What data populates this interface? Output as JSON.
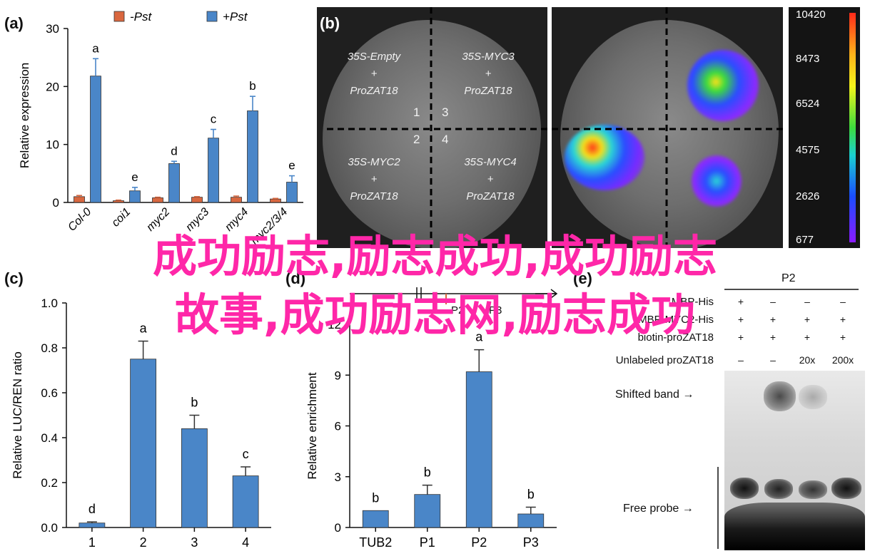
{
  "panel_a": {
    "label": "(a)",
    "legend": [
      "-Pst",
      "+Pst"
    ],
    "ylabel": "Relative expression",
    "yticks": [
      "0",
      "10",
      "20",
      "30"
    ],
    "xticks": [
      "Col-0",
      "coi1",
      "myc2",
      "myc3",
      "myc4",
      "myc2/3/4"
    ],
    "letters": [
      "a",
      "e",
      "d",
      "c",
      "b",
      "e"
    ]
  },
  "panel_b": {
    "label": "(b)",
    "quadrants": [
      {
        "l1": "35S-Empty",
        "l2": "+",
        "l3": "ProZAT18"
      },
      {
        "l1": "35S-MYC3",
        "l2": "+",
        "l3": "ProZAT18"
      },
      {
        "l1": "35S-MYC2",
        "l2": "+",
        "l3": "ProZAT18"
      },
      {
        "l1": "35S-MYC4",
        "l2": "+",
        "l3": "ProZAT18"
      }
    ],
    "numbers": [
      "1",
      "3",
      "2",
      "4"
    ],
    "scale": [
      "10420",
      "8473",
      "6524",
      "4575",
      "2626",
      "677"
    ]
  },
  "panel_c": {
    "label": "(c)",
    "ylabel": "Relative LUC/REN ratio",
    "yticks": [
      "0.0",
      "0.2",
      "0.4",
      "0.6",
      "0.8",
      "1.0"
    ],
    "xticks": [
      "1",
      "2",
      "3",
      "4"
    ],
    "letters": [
      "d",
      "a",
      "b",
      "c"
    ]
  },
  "panel_d": {
    "label": "(d)",
    "ylabel": "Relative enrichment",
    "yticks": [
      "0",
      "3",
      "6",
      "9",
      "12"
    ],
    "xticks": [
      "TUB2",
      "P1",
      "P2",
      "P3"
    ],
    "letters": [
      "b",
      "b",
      "a",
      "b"
    ],
    "diagram_labels": [
      "P2",
      "P3"
    ]
  },
  "panel_e": {
    "label": "(e)",
    "probe_header": "P2",
    "row_labels": [
      "MBP-His",
      "MBP-MYC2-His",
      "biotin-proZAT18",
      "Unlabeled proZAT18"
    ],
    "rows": [
      [
        "+",
        "–",
        "–",
        "–"
      ],
      [
        "+",
        "+",
        "+",
        "+"
      ],
      [
        "+",
        "+",
        "+",
        "+"
      ],
      [
        "–",
        "–",
        "20x",
        "200x"
      ]
    ],
    "shifted": "Shifted band",
    "free": "Free probe"
  },
  "overlay": {
    "line1": "成功励志,励志成功,成功励志",
    "line2": "故事,成功励志网,励志成功"
  },
  "chart_data": [
    {
      "type": "bar",
      "title": "",
      "xlabel": "",
      "ylabel": "Relative expression",
      "categories": [
        "Col-0",
        "coi1",
        "myc2",
        "myc3",
        "myc4",
        "myc2/3/4"
      ],
      "series": [
        {
          "name": "-Pst",
          "values": [
            1.0,
            0.3,
            0.8,
            0.9,
            0.9,
            0.6
          ],
          "errors": [
            0.2,
            0.1,
            0.1,
            0.1,
            0.2,
            0.1
          ],
          "color": "#d9673f"
        },
        {
          "name": "+Pst",
          "values": [
            21.8,
            2.0,
            6.7,
            11.1,
            15.8,
            3.5
          ],
          "errors": [
            3.0,
            0.6,
            0.4,
            1.5,
            2.5,
            1.1
          ],
          "color": "#4a86c8"
        }
      ],
      "letters": [
        "a",
        "e",
        "d",
        "c",
        "b",
        "e"
      ],
      "ylim": [
        0,
        30
      ]
    },
    {
      "type": "bar",
      "title": "",
      "xlabel": "",
      "ylabel": "Relative LUC/REN ratio",
      "categories": [
        "1",
        "2",
        "3",
        "4"
      ],
      "values": [
        0.02,
        0.75,
        0.44,
        0.23
      ],
      "errors": [
        0.005,
        0.08,
        0.06,
        0.04
      ],
      "letters": [
        "d",
        "a",
        "b",
        "c"
      ],
      "ylim": [
        0,
        1.0
      ],
      "color": "#4a86c8"
    },
    {
      "type": "bar",
      "title": "",
      "xlabel": "",
      "ylabel": "Relative enrichment",
      "categories": [
        "TUB2",
        "P1",
        "P2",
        "P3"
      ],
      "values": [
        1.0,
        1.95,
        9.2,
        0.8
      ],
      "errors": [
        0.0,
        0.55,
        1.3,
        0.4
      ],
      "letters": [
        "b",
        "b",
        "a",
        "b"
      ],
      "ylim": [
        0,
        12
      ],
      "color": "#4a86c8"
    }
  ]
}
